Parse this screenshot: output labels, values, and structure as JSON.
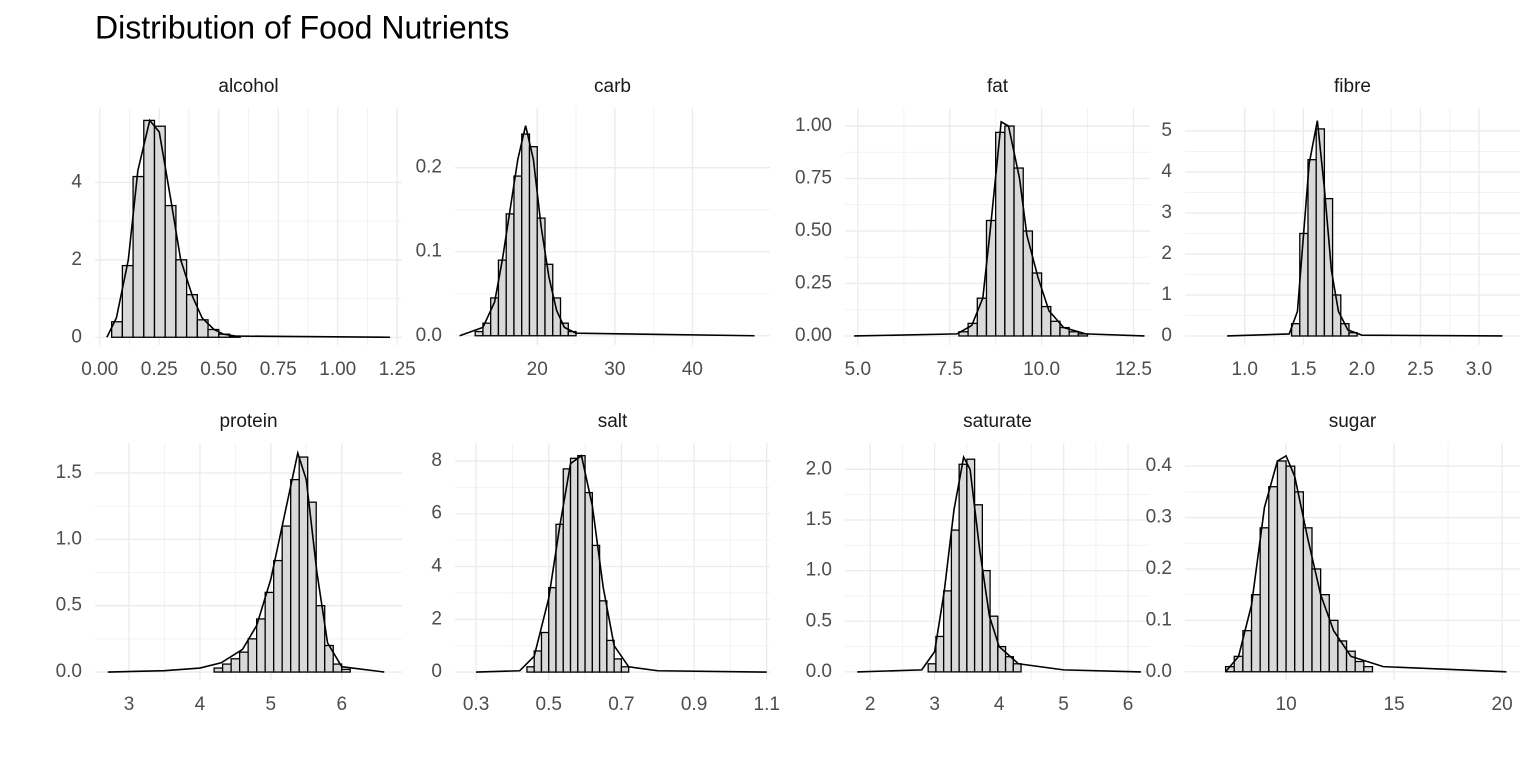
{
  "title": "Distribution of Food Nutrients",
  "chart_data": [
    {
      "type": "histogram",
      "title": "alcohol",
      "color": "#d9d9d9",
      "edgecolor": "#000000",
      "grid": true,
      "bins": [
        0.05,
        0.095,
        0.14,
        0.185,
        0.23,
        0.275,
        0.32,
        0.365,
        0.41,
        0.455,
        0.5,
        0.545,
        0.59
      ],
      "values": [
        0.4,
        1.85,
        4.15,
        5.6,
        5.45,
        3.4,
        2.0,
        1.1,
        0.45,
        0.2,
        0.08,
        0.03
      ],
      "line": {
        "x": [
          0.03,
          0.07,
          0.12,
          0.16,
          0.21,
          0.25,
          0.3,
          0.34,
          0.39,
          0.43,
          0.48,
          0.52,
          0.57,
          1.22
        ],
        "values": [
          0,
          0.5,
          2.0,
          4.3,
          5.6,
          5.3,
          3.5,
          2.0,
          1.05,
          0.5,
          0.2,
          0.08,
          0.03,
          0
        ]
      },
      "xlim": [
        -0.02,
        1.27
      ],
      "ylim": [
        -0.2,
        5.92
      ],
      "xticks": [
        {
          "value": 0,
          "label": "0.00"
        },
        0.25,
        {
          "value": 0.5,
          "label": "0.50"
        },
        0.75,
        {
          "value": 1,
          "label": "1.00"
        },
        1.25
      ],
      "yticks": [
        0,
        2,
        4
      ]
    },
    {
      "type": "histogram",
      "title": "carb",
      "color": "#d9d9d9",
      "edgecolor": "#000000",
      "grid": true,
      "bins": [
        12,
        13,
        14,
        15,
        16,
        17,
        18,
        19,
        20,
        21,
        22,
        23,
        24,
        25
      ],
      "values": [
        0.005,
        0.015,
        0.045,
        0.09,
        0.145,
        0.19,
        0.24,
        0.225,
        0.14,
        0.085,
        0.045,
        0.015,
        0.005
      ],
      "line": {
        "x": [
          10,
          13,
          14.5,
          15.5,
          16.5,
          17.5,
          18.5,
          19.5,
          20.5,
          21.5,
          22.5,
          23.5,
          25,
          48
        ],
        "values": [
          0,
          0.01,
          0.04,
          0.09,
          0.15,
          0.21,
          0.25,
          0.21,
          0.13,
          0.07,
          0.03,
          0.01,
          0.003,
          0
        ]
      },
      "xlim": [
        9.4,
        50
      ],
      "ylim": [
        -0.011,
        0.271
      ],
      "xticks": [
        20,
        30,
        40
      ],
      "yticks": [
        {
          "value": 0,
          "label": "0.0"
        },
        0.1,
        0.2
      ]
    },
    {
      "type": "histogram",
      "title": "fat",
      "color": "#d9d9d9",
      "edgecolor": "#000000",
      "grid": true,
      "bins": [
        7.75,
        8,
        8.25,
        8.5,
        8.75,
        9,
        9.25,
        9.5,
        9.75,
        10,
        10.25,
        10.5,
        10.75,
        11,
        11.25
      ],
      "values": [
        0.02,
        0.06,
        0.18,
        0.55,
        0.97,
        1.0,
        0.8,
        0.5,
        0.3,
        0.14,
        0.07,
        0.04,
        0.02,
        0.01
      ],
      "line": {
        "x": [
          4.9,
          7.7,
          8.1,
          8.4,
          8.6,
          8.9,
          9.1,
          9.4,
          9.6,
          9.9,
          10.2,
          10.6,
          11.2,
          12.8
        ],
        "values": [
          0,
          0.01,
          0.05,
          0.18,
          0.5,
          1.02,
          1.0,
          0.75,
          0.48,
          0.28,
          0.12,
          0.04,
          0.01,
          0
        ]
      },
      "xlim": [
        4.65,
        12.95
      ],
      "ylim": [
        -0.043,
        1.086
      ],
      "xticks": [
        {
          "value": 5,
          "label": "5.0"
        },
        7.5,
        {
          "value": 10,
          "label": "10.0"
        },
        12.5
      ],
      "yticks": [
        {
          "value": 0,
          "label": "0.00"
        },
        0.25,
        {
          "value": 0.5,
          "label": "0.50"
        },
        0.75,
        {
          "value": 1,
          "label": "1.00"
        }
      ]
    },
    {
      "type": "histogram",
      "title": "fibre",
      "color": "#d9d9d9",
      "edgecolor": "#000000",
      "grid": true,
      "bins": [
        1.4,
        1.47,
        1.54,
        1.61,
        1.68,
        1.75,
        1.82,
        1.89,
        1.96
      ],
      "values": [
        0.3,
        2.5,
        4.3,
        5.05,
        3.35,
        1.0,
        0.3,
        0.08
      ],
      "line": {
        "x": [
          0.85,
          1.38,
          1.45,
          1.5,
          1.55,
          1.62,
          1.68,
          1.74,
          1.8,
          1.88,
          2.0,
          3.2
        ],
        "values": [
          0,
          0.05,
          0.6,
          2.4,
          4.2,
          5.25,
          3.6,
          1.6,
          0.6,
          0.15,
          0.02,
          0
        ]
      },
      "xlim": [
        0.49,
        3.35
      ],
      "ylim": [
        -0.22,
        5.56
      ],
      "xticks": [
        {
          "value": 1,
          "label": "1.0"
        },
        1.5,
        {
          "value": 2,
          "label": "2.0"
        },
        2.5,
        {
          "value": 3,
          "label": "3.0"
        }
      ],
      "yticks": [
        0,
        1,
        2,
        3,
        4,
        5
      ]
    },
    {
      "type": "histogram",
      "title": "protein",
      "color": "#d9d9d9",
      "edgecolor": "#000000",
      "grid": true,
      "bins": [
        4.2,
        4.32,
        4.44,
        4.56,
        4.68,
        4.8,
        4.92,
        5.04,
        5.16,
        5.28,
        5.4,
        5.52,
        5.64,
        5.76,
        5.88,
        6.0,
        6.12
      ],
      "values": [
        0.03,
        0.06,
        0.1,
        0.15,
        0.25,
        0.4,
        0.6,
        0.84,
        1.1,
        1.45,
        1.62,
        1.28,
        0.5,
        0.2,
        0.06,
        0.02
      ],
      "line": {
        "x": [
          2.7,
          3.5,
          4.0,
          4.3,
          4.6,
          4.8,
          5.0,
          5.2,
          5.38,
          5.5,
          5.65,
          5.8,
          6.0,
          6.6
        ],
        "values": [
          0,
          0.01,
          0.03,
          0.07,
          0.17,
          0.35,
          0.7,
          1.2,
          1.65,
          1.45,
          0.75,
          0.22,
          0.04,
          0
        ]
      },
      "xlim": [
        2.52,
        6.85
      ],
      "ylim": [
        -0.06,
        1.726
      ],
      "xticks": [
        3,
        4,
        5,
        6
      ],
      "yticks": [
        {
          "value": 0,
          "label": "0.0"
        },
        0.5,
        {
          "value": 1,
          "label": "1.0"
        },
        1.5
      ]
    },
    {
      "type": "histogram",
      "title": "salt",
      "color": "#d9d9d9",
      "edgecolor": "#000000",
      "grid": true,
      "bins": [
        0.44,
        0.46,
        0.48,
        0.5,
        0.52,
        0.54,
        0.56,
        0.58,
        0.6,
        0.62,
        0.64,
        0.66,
        0.68,
        0.7,
        0.72
      ],
      "values": [
        0.2,
        0.8,
        1.5,
        3.2,
        5.6,
        7.7,
        8.1,
        8.2,
        6.8,
        4.8,
        2.7,
        1.2,
        0.5,
        0.2
      ],
      "line": {
        "x": [
          0.3,
          0.42,
          0.46,
          0.5,
          0.53,
          0.56,
          0.59,
          0.62,
          0.65,
          0.68,
          0.72,
          0.8,
          1.1
        ],
        "values": [
          0,
          0.05,
          0.6,
          2.8,
          5.5,
          7.9,
          8.2,
          6.3,
          3.2,
          1.0,
          0.2,
          0.05,
          0
        ]
      },
      "xlim": [
        0.242,
        1.109
      ],
      "ylim": [
        -0.3,
        8.68
      ],
      "xticks": [
        0.3,
        0.5,
        0.7,
        0.9,
        1.1
      ],
      "yticks": [
        0,
        2,
        4,
        6,
        8
      ]
    },
    {
      "type": "histogram",
      "title": "saturate",
      "color": "#d9d9d9",
      "edgecolor": "#000000",
      "grid": true,
      "bins": [
        2.9,
        3.02,
        3.14,
        3.26,
        3.38,
        3.5,
        3.62,
        3.74,
        3.86,
        3.98,
        4.1,
        4.22,
        4.34
      ],
      "values": [
        0.08,
        0.35,
        0.8,
        1.4,
        2.05,
        2.1,
        1.65,
        1.0,
        0.55,
        0.25,
        0.15,
        0.08
      ],
      "line": {
        "x": [
          1.8,
          2.8,
          3.0,
          3.15,
          3.3,
          3.45,
          3.55,
          3.7,
          3.85,
          4.0,
          4.3,
          5.0,
          6.2
        ],
        "values": [
          0,
          0.02,
          0.2,
          0.8,
          1.6,
          2.12,
          2.0,
          1.2,
          0.55,
          0.25,
          0.08,
          0.02,
          0
        ]
      },
      "xlim": [
        1.61,
        6.34
      ],
      "ylim": [
        -0.08,
        2.26
      ],
      "xticks": [
        2,
        3,
        4,
        5,
        6
      ],
      "yticks": [
        {
          "value": 0,
          "label": "0.0"
        },
        0.5,
        {
          "value": 1,
          "label": "1.0"
        },
        1.5,
        {
          "value": 2,
          "label": "2.0"
        }
      ]
    },
    {
      "type": "histogram",
      "title": "sugar",
      "color": "#d9d9d9",
      "edgecolor": "#000000",
      "grid": true,
      "bins": [
        7.2,
        7.6,
        8.0,
        8.4,
        8.8,
        9.2,
        9.6,
        10.0,
        10.4,
        10.8,
        11.2,
        11.6,
        12.0,
        12.4,
        12.8,
        13.2,
        13.6,
        14.0
      ],
      "values": [
        0.01,
        0.03,
        0.08,
        0.15,
        0.28,
        0.36,
        0.41,
        0.4,
        0.35,
        0.28,
        0.2,
        0.15,
        0.1,
        0.06,
        0.04,
        0.02,
        0.01
      ],
      "line": {
        "x": [
          7.2,
          7.8,
          8.4,
          9.0,
          9.6,
          10.0,
          10.4,
          11.0,
          11.6,
          12.2,
          13.0,
          14.5,
          20.2
        ],
        "values": [
          0,
          0.03,
          0.13,
          0.32,
          0.41,
          0.42,
          0.38,
          0.26,
          0.15,
          0.08,
          0.03,
          0.01,
          0
        ]
      },
      "xlim": [
        5.32,
        20.83
      ],
      "ylim": [
        -0.016,
        0.445
      ],
      "xticks": [
        10,
        15,
        20
      ],
      "yticks": [
        {
          "value": 0,
          "label": "0.0"
        },
        0.1,
        0.2,
        0.3,
        0.4
      ]
    }
  ]
}
